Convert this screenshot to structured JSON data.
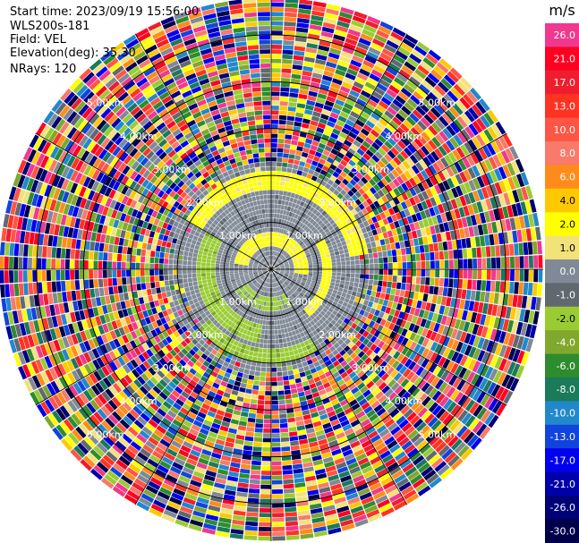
{
  "header": {
    "start_time": "Start time: 2023/09/19 15:56:00",
    "instrument": "WLS200s-181",
    "field": "Field: VEL",
    "elevation": "Elevation(deg): 35.30",
    "nrays": "NRays: 120"
  },
  "chart_data": {
    "type": "heatmap",
    "projection": "polar-ppi",
    "field": "VEL",
    "nrays": 120,
    "range_ring_labels": [
      "1.00km",
      "2.00km",
      "3.00km",
      "4.00km",
      "5.00km"
    ],
    "range_rings_km": [
      1,
      2,
      3,
      4,
      5
    ],
    "max_range_km": 5.8,
    "radial_spokes_deg": [
      0,
      30,
      60,
      90,
      120,
      150,
      180,
      210,
      240,
      270,
      300,
      330
    ],
    "regions": [
      {
        "range_km": [
          0,
          1.0
        ],
        "description": "near-zero radial velocity, yellow positive arc northeast"
      },
      {
        "range_km": [
          1.0,
          2.2
        ],
        "description": "mostly near-zero with -1 to -2 m/s arcs southwest and +2 m/s arcs east"
      },
      {
        "range_km": [
          2.2,
          5.8
        ],
        "description": "noise, random values across full scale"
      }
    ],
    "colorbar": {
      "title": "m/s",
      "min": -30.0,
      "max": 30.0,
      "tick_labels": [
        "26.0",
        "21.0",
        "17.0",
        "13.0",
        "10.0",
        "8.0",
        "6.0",
        "4.0",
        "2.0",
        "1.0",
        "0.0",
        "-1.0",
        "-2.0",
        "-4.0",
        "-6.0",
        "-8.0",
        "-10.0",
        "-13.0",
        "-17.0",
        "-21.0",
        "-26.0",
        "-30.0"
      ],
      "bins": [
        {
          "label": "26.0",
          "color": "#f0388f"
        },
        {
          "label": "21.0",
          "color": "#ff0022"
        },
        {
          "label": "17.0",
          "color": "#ee1e2e"
        },
        {
          "label": "13.0",
          "color": "#ff3322"
        },
        {
          "label": "10.0",
          "color": "#ff5544"
        },
        {
          "label": "8.0",
          "color": "#f77a6a"
        },
        {
          "label": "6.0",
          "color": "#ff8c1a"
        },
        {
          "label": "4.0",
          "color": "#ffc800"
        },
        {
          "label": "2.0",
          "color": "#ffff00"
        },
        {
          "label": "1.0",
          "color": "#f2e27a"
        },
        {
          "label": "0.0",
          "color": "#808a96"
        },
        {
          "label": "-1.0",
          "color": "#606870"
        },
        {
          "label": "-2.0",
          "color": "#99cc33"
        },
        {
          "label": "-4.0",
          "color": "#7fa82d"
        },
        {
          "label": "-6.0",
          "color": "#2e8b2e"
        },
        {
          "label": "-8.0",
          "color": "#1a7a5a"
        },
        {
          "label": "-10.0",
          "color": "#2288cc"
        },
        {
          "label": "-13.0",
          "color": "#1144dd"
        },
        {
          "label": "-17.0",
          "color": "#0000ee"
        },
        {
          "label": "-21.0",
          "color": "#0000aa"
        },
        {
          "label": "-26.0",
          "color": "#000077"
        },
        {
          "label": "-30.0",
          "color": "#00004a"
        }
      ]
    }
  }
}
